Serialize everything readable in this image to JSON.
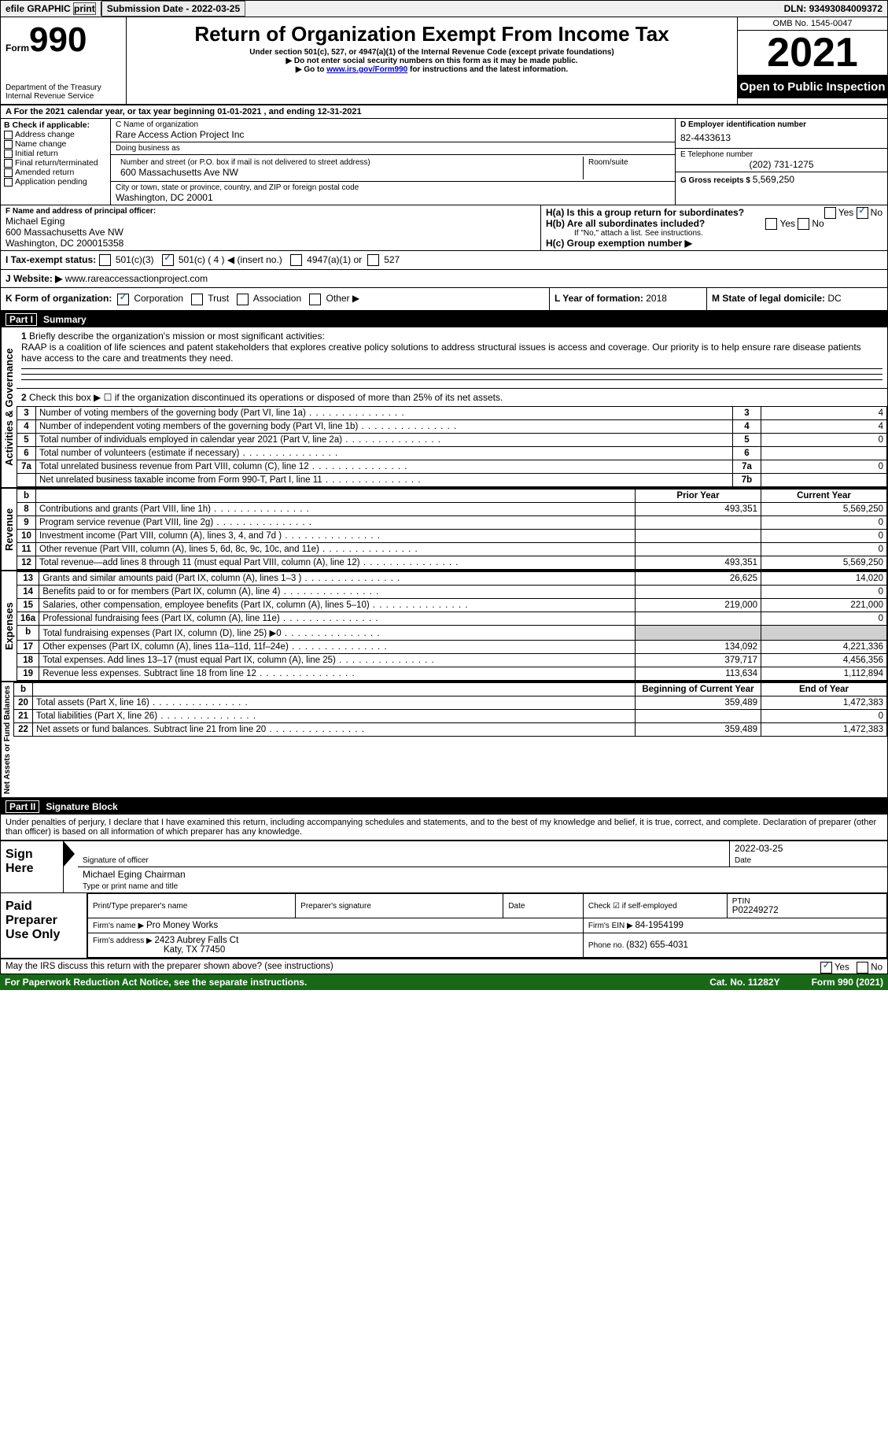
{
  "topbar": {
    "efile": "efile GRAPHIC",
    "print": "print",
    "sub_label": "Submission Date - ",
    "sub_date": "2022-03-25",
    "dln_label": "DLN: ",
    "dln": "93493084009372"
  },
  "header": {
    "form_prefix": "Form",
    "form_number": "990",
    "dept": "Department of the Treasury",
    "irs": "Internal Revenue Service",
    "title": "Return of Organization Exempt From Income Tax",
    "subtitle": "Under section 501(c), 527, or 4947(a)(1) of the Internal Revenue Code (except private foundations)",
    "note1": "▶ Do not enter social security numbers on this form as it may be made public.",
    "note2_pre": "▶ Go to ",
    "note2_link": "www.irs.gov/Form990",
    "note2_post": " for instructions and the latest information.",
    "omb": "OMB No. 1545-0047",
    "year": "2021",
    "open": "Open to Public Inspection"
  },
  "row_a": "A For the 2021 calendar year, or tax year beginning 01-01-2021   , and ending 12-31-2021",
  "col_b": {
    "title": "B Check if applicable:",
    "items": [
      "Address change",
      "Name change",
      "Initial return",
      "Final return/terminated",
      "Amended return",
      "Application pending"
    ]
  },
  "col_c": {
    "name_label": "C Name of organization",
    "name": "Rare Access Action Project Inc",
    "dba_label": "Doing business as",
    "dba": "",
    "street_label": "Number and street (or P.O. box if mail is not delivered to street address)",
    "room_label": "Room/suite",
    "street": "600 Massachusetts Ave NW",
    "city_label": "City or town, state or province, country, and ZIP or foreign postal code",
    "city": "Washington, DC  20001"
  },
  "col_d": {
    "label": "D Employer identification number",
    "value": "82-4433613",
    "e_label": "E Telephone number",
    "e_value": "(202) 731-1275",
    "g_label": "G Gross receipts $ ",
    "g_value": "5,569,250"
  },
  "row_f": {
    "label": "F  Name and address of principal officer:",
    "name": "Michael Eging",
    "addr1": "600 Massachusetts Ave NW",
    "addr2": "Washington, DC  200015358"
  },
  "row_h": {
    "ha": "H(a)  Is this a group return for subordinates?",
    "hb": "H(b)  Are all subordinates included?",
    "hb_note": "If \"No,\" attach a list. See instructions.",
    "hc": "H(c)  Group exemption number ▶",
    "yes": "Yes",
    "no": "No"
  },
  "row_i": {
    "label": "I  Tax-exempt status:",
    "opt1": " 501(c)(3)",
    "opt2": " 501(c) ( 4 ) ◀ (insert no.)",
    "opt3": " 4947(a)(1) or",
    "opt4": " 527"
  },
  "row_j": {
    "label": "J  Website: ▶ ",
    "value": "www.rareaccessactionproject.com"
  },
  "row_k": {
    "label": "K Form of organization:",
    "opts": [
      "Corporation",
      "Trust",
      "Association",
      "Other ▶"
    ],
    "l_label": "L Year of formation: ",
    "l_value": "2018",
    "m_label": "M State of legal domicile: ",
    "m_value": "DC"
  },
  "part1": {
    "header": "Summary",
    "part": "Part I",
    "sidebar_ag": "Activities & Governance",
    "sidebar_rev": "Revenue",
    "sidebar_exp": "Expenses",
    "sidebar_na": "Net Assets or Fund Balances",
    "l1_label": "Briefly describe the organization's mission or most significant activities:",
    "l1_text": "RAAP is a coalition of life sciences and patent stakeholders that explores creative policy solutions to address structural issues is access and coverage. Our priority is to help ensure rare disease patients have access to the care and treatments they need.",
    "l2": "Check this box ▶ ☐  if the organization discontinued its operations or disposed of more than 25% of its net assets.",
    "lines_ag": [
      {
        "n": "3",
        "d": "Number of voting members of the governing body (Part VI, line 1a)",
        "b": "3",
        "v": "4"
      },
      {
        "n": "4",
        "d": "Number of independent voting members of the governing body (Part VI, line 1b)",
        "b": "4",
        "v": "4"
      },
      {
        "n": "5",
        "d": "Total number of individuals employed in calendar year 2021 (Part V, line 2a)",
        "b": "5",
        "v": "0"
      },
      {
        "n": "6",
        "d": "Total number of volunteers (estimate if necessary)",
        "b": "6",
        "v": ""
      },
      {
        "n": "7a",
        "d": "Total unrelated business revenue from Part VIII, column (C), line 12",
        "b": "7a",
        "v": "0"
      },
      {
        "n": "",
        "d": "Net unrelated business taxable income from Form 990-T, Part I, line 11",
        "b": "7b",
        "v": ""
      }
    ],
    "hdr_b": "b",
    "hdr_prior": "Prior Year",
    "hdr_curr": "Current Year",
    "lines_rev": [
      {
        "n": "8",
        "d": "Contributions and grants (Part VIII, line 1h)",
        "p": "493,351",
        "c": "5,569,250"
      },
      {
        "n": "9",
        "d": "Program service revenue (Part VIII, line 2g)",
        "p": "",
        "c": "0"
      },
      {
        "n": "10",
        "d": "Investment income (Part VIII, column (A), lines 3, 4, and 7d )",
        "p": "",
        "c": "0"
      },
      {
        "n": "11",
        "d": "Other revenue (Part VIII, column (A), lines 5, 6d, 8c, 9c, 10c, and 11e)",
        "p": "",
        "c": "0"
      },
      {
        "n": "12",
        "d": "Total revenue—add lines 8 through 11 (must equal Part VIII, column (A), line 12)",
        "p": "493,351",
        "c": "5,569,250"
      }
    ],
    "lines_exp": [
      {
        "n": "13",
        "d": "Grants and similar amounts paid (Part IX, column (A), lines 1–3 )",
        "p": "26,625",
        "c": "14,020"
      },
      {
        "n": "14",
        "d": "Benefits paid to or for members (Part IX, column (A), line 4)",
        "p": "",
        "c": "0"
      },
      {
        "n": "15",
        "d": "Salaries, other compensation, employee benefits (Part IX, column (A), lines 5–10)",
        "p": "219,000",
        "c": "221,000"
      },
      {
        "n": "16a",
        "d": "Professional fundraising fees (Part IX, column (A), line 11e)",
        "p": "",
        "c": "0"
      },
      {
        "n": "b",
        "d": "Total fundraising expenses (Part IX, column (D), line 25) ▶0",
        "p": "shade",
        "c": "shade"
      },
      {
        "n": "17",
        "d": "Other expenses (Part IX, column (A), lines 11a–11d, 11f–24e)",
        "p": "134,092",
        "c": "4,221,336"
      },
      {
        "n": "18",
        "d": "Total expenses. Add lines 13–17 (must equal Part IX, column (A), line 25)",
        "p": "379,717",
        "c": "4,456,356"
      },
      {
        "n": "19",
        "d": "Revenue less expenses. Subtract line 18 from line 12",
        "p": "113,634",
        "c": "1,112,894"
      }
    ],
    "hdr_beg": "Beginning of Current Year",
    "hdr_end": "End of Year",
    "lines_na": [
      {
        "n": "20",
        "d": "Total assets (Part X, line 16)",
        "p": "359,489",
        "c": "1,472,383"
      },
      {
        "n": "21",
        "d": "Total liabilities (Part X, line 26)",
        "p": "",
        "c": "0"
      },
      {
        "n": "22",
        "d": "Net assets or fund balances. Subtract line 21 from line 20",
        "p": "359,489",
        "c": "1,472,383"
      }
    ]
  },
  "part2": {
    "part": "Part II",
    "header": "Signature Block",
    "decl": "Under penalties of perjury, I declare that I have examined this return, including accompanying schedules and statements, and to the best of my knowledge and belief, it is true, correct, and complete. Declaration of preparer (other than officer) is based on all information of which preparer has any knowledge.",
    "sign_here": "Sign Here",
    "sig_officer": "Signature of officer",
    "sig_date": "2022-03-25",
    "date_label": "Date",
    "officer_name": "Michael Eging  Chairman",
    "officer_title_label": "Type or print name and title",
    "paid": "Paid Preparer Use Only",
    "prep_name_label": "Print/Type preparer's name",
    "prep_sig_label": "Preparer's signature",
    "check_self": "Check ☑ if self-employed",
    "ptin_label": "PTIN",
    "ptin": "P02249272",
    "firm_name_label": "Firm's name    ▶ ",
    "firm_name": "Pro Money Works",
    "firm_ein_label": "Firm's EIN ▶ ",
    "firm_ein": "84-1954199",
    "firm_addr_label": "Firm's address ▶ ",
    "firm_addr": "2423 Aubrey Falls Ct",
    "firm_city": "Katy, TX  77450",
    "phone_label": "Phone no. ",
    "phone": "(832) 655-4031",
    "may": "May the IRS discuss this return with the preparer shown above? (see instructions)",
    "yes": "Yes",
    "no": "No"
  },
  "footer": {
    "pra": "For Paperwork Reduction Act Notice, see the separate instructions.",
    "cat": "Cat. No. 11282Y",
    "form": "Form 990 (2021)"
  },
  "colors": {
    "green": "#186818",
    "link": "#0000cc"
  }
}
